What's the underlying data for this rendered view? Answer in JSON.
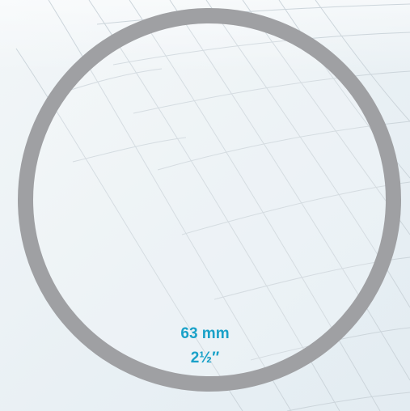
{
  "size": {
    "metric": "63 mm",
    "imperial": "2½″"
  },
  "colors": {
    "ring": "#9fa0a3",
    "label": "#19a1c8",
    "background": "#e9f0f4",
    "grid_lines": "#c9d2d8"
  }
}
